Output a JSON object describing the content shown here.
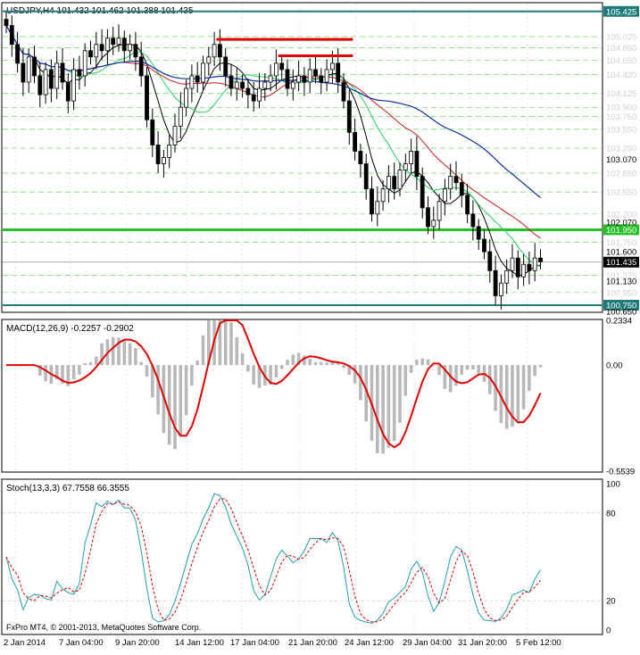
{
  "colors": {
    "background": "#ffffff",
    "frame": "#000000",
    "grid": "#00c000",
    "price_line_dark": "#1f7a7a",
    "support_green": "#28c028",
    "resistance_red": "#e00000",
    "ma_black": "#000000",
    "ma_green": "#20d060",
    "ma_red": "#c81e1e",
    "ma_blue": "#1030a0",
    "macd_hist": "#b8b8b8",
    "macd_signal": "#e00000",
    "stoch_main": "#20a0b0",
    "stoch_signal": "#e00000",
    "label_box": "#000000",
    "label_highlight_dark": "#1f7a7a",
    "label_highlight_green": "#28c028"
  },
  "chart_data": [
    {
      "type": "candlestick",
      "title": "USDJPY,H4  101.432 101.462 101.388 101.435",
      "ylim": [
        100.65,
        105.55
      ],
      "price_levels": [
        "105.425",
        "105.025",
        "104.850",
        "104.650",
        "104.420",
        "104.125",
        "103.900",
        "103.750",
        "103.550",
        "103.250",
        "102.850",
        "102.550",
        "102.200",
        "101.950",
        "101.750",
        "101.435",
        "101.225",
        "100.950",
        "100.750"
      ],
      "price_ticks": [
        "103.070",
        "102.070",
        "101.600",
        "101.130",
        "100.650"
      ],
      "tick_values": [
        105.425,
        105.025,
        104.85,
        104.65,
        104.42,
        104.125,
        103.9,
        103.75,
        103.55,
        103.25,
        102.85,
        102.55,
        102.2,
        101.95,
        101.75,
        101.435,
        101.225,
        100.95,
        100.75
      ],
      "highlighted": {
        "105.425": "dark",
        "101.950": "green",
        "101.435": "current",
        "100.750": "dark"
      },
      "horizontal_lines": [
        {
          "value": 105.425,
          "style": "dark"
        },
        {
          "value": 101.95,
          "style": "green"
        },
        {
          "value": 100.75,
          "style": "dark"
        },
        {
          "value": 101.435,
          "style": "current"
        }
      ],
      "resistance_segments": [
        {
          "value": 104.98,
          "from_bar": 38,
          "to_bar": 61
        },
        {
          "value": 104.72,
          "from_bar": 49,
          "to_bar": 61
        }
      ],
      "close": [
        105.2,
        104.9,
        104.6,
        104.3,
        104.7,
        104.4,
        104.1,
        104.5,
        104.2,
        104.6,
        104.3,
        104.0,
        104.5,
        104.4,
        104.8,
        104.7,
        104.9,
        104.8,
        105.0,
        104.9,
        105.0,
        104.8,
        104.9,
        104.7,
        104.4,
        103.7,
        103.3,
        103.0,
        103.1,
        103.3,
        103.6,
        103.9,
        104.2,
        104.4,
        104.3,
        104.6,
        104.7,
        104.9,
        104.7,
        104.4,
        104.2,
        104.3,
        104.2,
        104.1,
        104.0,
        104.2,
        104.3,
        104.4,
        104.6,
        104.5,
        104.2,
        104.3,
        104.4,
        104.3,
        104.5,
        104.4,
        104.3,
        104.5,
        104.6,
        104.3,
        104.0,
        103.5,
        103.2,
        103.0,
        102.6,
        102.2,
        102.4,
        102.6,
        102.8,
        102.6,
        102.9,
        103.0,
        103.2,
        102.8,
        102.3,
        102.0,
        102.1,
        102.4,
        102.6,
        102.8,
        102.7,
        102.5,
        102.2,
        102.0,
        101.8,
        101.6,
        101.3,
        100.9,
        101.1,
        101.3,
        101.5,
        101.2,
        101.4,
        101.3,
        101.5,
        101.44
      ],
      "series_names": [
        "MA black",
        "MA green",
        "MA red",
        "MA blue"
      ]
    },
    {
      "type": "bar",
      "title": "MACD(12,26,9) -0.2257 -0.2902",
      "ylim": [
        -0.5539,
        0.2334
      ],
      "ticks": [
        "0.2334",
        "0.00",
        "-0.5539"
      ]
    },
    {
      "type": "line",
      "title": "Stoch(13,3,3) 67.7558 66.3555",
      "ylim": [
        0,
        100
      ],
      "ticks": [
        "100",
        "80",
        "20",
        "0"
      ]
    }
  ],
  "x_axis_labels": [
    "2 Jan 2014",
    "7 Jan 04:00",
    "9 Jan 20:00",
    "14 Jan 12:00",
    "17 Jan 04:00",
    "21 Jan 20:00",
    "24 Jan 12:00",
    "29 Jan 04:00",
    "31 Jan 20:00",
    "5 Feb 12:00"
  ],
  "copyright": "FxPro MT4, © 2001-2013, MetaQuotes Software Corp."
}
